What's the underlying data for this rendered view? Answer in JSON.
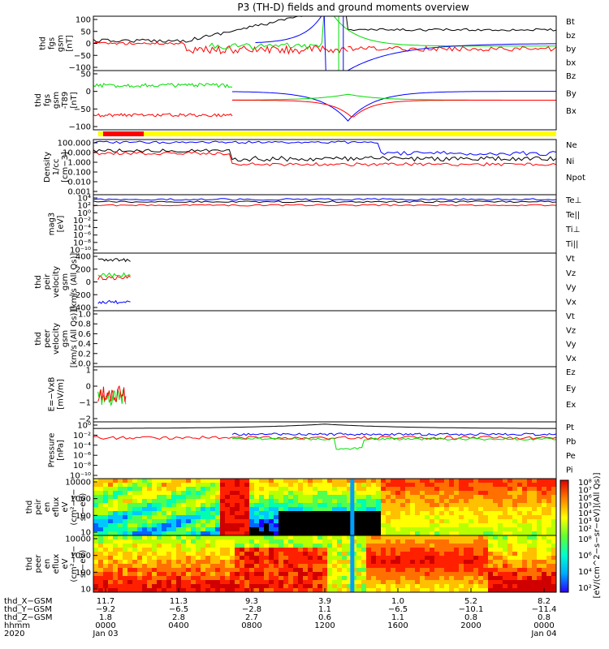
{
  "title": "P3 (TH-D) fields and ground moments overview",
  "colors": {
    "black": "#000000",
    "red": "#ff0000",
    "green": "#00dd00",
    "blue": "#0000ff",
    "yellow": "#ffff00"
  },
  "chart_data": {
    "type": "line",
    "panels": [
      {
        "id": "fgs-gsm",
        "ylabel": [
          "thd",
          "fgs",
          "gsm",
          "[nT]"
        ],
        "ticks": [
          "100",
          "50",
          "0",
          "−50",
          "−100"
        ],
        "ylim": [
          -100,
          100
        ],
        "legend": [
          {
            "name": "Bt",
            "color": "black"
          },
          {
            "name": "bz",
            "color": "red"
          },
          {
            "name": "by",
            "color": "green"
          },
          {
            "name": "bx",
            "color": "blue"
          }
        ]
      },
      {
        "id": "fgs-gsm-dc",
        "ylabel": [
          "thd",
          "fgs",
          "gsm",
          "-T89",
          "[nT]"
        ],
        "ticks": [
          "50",
          "0",
          "−50",
          "−100"
        ],
        "ylim": [
          -125,
          75
        ],
        "legend": [
          {
            "name": "Bz",
            "color": "red"
          },
          {
            "name": "By",
            "color": "green"
          },
          {
            "name": "Bx",
            "color": "blue"
          }
        ]
      },
      {
        "id": "density",
        "ylabel": [
          "Density",
          "1/cc",
          "[cm−3]"
        ],
        "ticks": [
          "100.000",
          "10.000",
          "1.000",
          "0.100",
          "0.010",
          "0.001"
        ],
        "scale": "log",
        "legend": [
          {
            "name": "Ne",
            "color": "red"
          },
          {
            "name": "Ni",
            "color": "black"
          },
          {
            "name": "Npot",
            "color": "blue"
          }
        ]
      },
      {
        "id": "temperature",
        "ylabel": [
          "mag3",
          "[eV]"
        ],
        "ticks": [
          "10⁴",
          "10²",
          "10⁰",
          "10⁻²",
          "10⁻⁴",
          "10⁻⁶",
          "10⁻⁸",
          "10⁻¹⁰"
        ],
        "scale": "log",
        "legend": [
          {
            "name": "Te⊥",
            "color": "red"
          },
          {
            "name": "Te||",
            "color": "black"
          },
          {
            "name": "Ti⊥",
            "color": "blue"
          },
          {
            "name": "Ti||",
            "color": "green"
          }
        ]
      },
      {
        "id": "peir-velocity",
        "ylabel": [
          "thd",
          "peir",
          "velocity",
          "gsm",
          "[km/s (All Qs)]"
        ],
        "ticks": [
          "400",
          "200",
          "0",
          "−200",
          "−400"
        ],
        "ylim": [
          -400,
          400
        ],
        "legend": [
          {
            "name": "Vt",
            "color": "black"
          },
          {
            "name": "Vz",
            "color": "red"
          },
          {
            "name": "Vy",
            "color": "green"
          },
          {
            "name": "Vx",
            "color": "blue"
          }
        ]
      },
      {
        "id": "peer-velocity",
        "ylabel": [
          "thd",
          "peer",
          "velocity",
          "gsm",
          "[km/s (All Qs)]"
        ],
        "ticks": [
          "1.0",
          "0.8",
          "0.6",
          "0.4",
          "0.2",
          "0.0"
        ],
        "ylim": [
          0,
          1
        ],
        "legend": [
          {
            "name": "Vt",
            "color": "black"
          },
          {
            "name": "Vz",
            "color": "red"
          },
          {
            "name": "Vy",
            "color": "green"
          },
          {
            "name": "Vx",
            "color": "blue"
          }
        ]
      },
      {
        "id": "efield",
        "ylabel": [
          "E=−VxB",
          "[mV/m]"
        ],
        "ticks": [
          "1",
          "0",
          "−1",
          "−2"
        ],
        "ylim": [
          -2,
          1.5
        ],
        "legend": [
          {
            "name": "Ez",
            "color": "red"
          },
          {
            "name": "Ey",
            "color": "green"
          },
          {
            "name": "Ex",
            "color": "blue"
          }
        ]
      },
      {
        "id": "pressure",
        "ylabel": [
          "Pressure",
          "[nPa]"
        ],
        "ticks": [
          "10⁰",
          "10⁻²",
          "10⁻⁴",
          "10⁻⁶",
          "10⁻⁸",
          "10⁻¹⁰"
        ],
        "scale": "log",
        "legend": [
          {
            "name": "Pt",
            "color": "black"
          },
          {
            "name": "Pb",
            "color": "red"
          },
          {
            "name": "Pe",
            "color": "green"
          },
          {
            "name": "Pi",
            "color": "blue"
          }
        ]
      },
      {
        "id": "peir-spectrogram",
        "type": "heatmap",
        "ylabel": [
          "thd",
          "peir",
          "en",
          "eflux",
          "eV",
          "(cm²−s−",
          "sr−eV)"
        ],
        "ticks": [
          "10000",
          "1000",
          "100",
          "10"
        ],
        "scale": "log"
      },
      {
        "id": "peer-spectrogram",
        "type": "heatmap",
        "ylabel": [
          "thd",
          "peer",
          "en",
          "eflux",
          "eV",
          "(cm²−s−",
          "sr−eV)"
        ],
        "ticks": [
          "10000",
          "1000",
          "100",
          "10"
        ],
        "scale": "log"
      }
    ],
    "colorbar": {
      "label": "[eV/(cm^2−s−sr−eV)](All Qs)]",
      "ticks": [
        "10⁸",
        "10⁷",
        "10⁶",
        "10⁵",
        "10⁴",
        "10³",
        "10²"
      ],
      "ticks_lower": [
        "10⁸",
        "10⁶",
        "10⁴",
        "10²"
      ]
    },
    "x_axis": {
      "rows": [
        {
          "label": "thd_X−GSM",
          "values": [
            "11.7",
            "11.3",
            "9.3",
            "3.9",
            "1.0",
            "5.2",
            "8.2"
          ]
        },
        {
          "label": "thd_Y−GSM",
          "values": [
            "−9.2",
            "−6.5",
            "−2.8",
            "1.1",
            "−6.5",
            "−10.1",
            "−11.4"
          ]
        },
        {
          "label": "thd_Z−GSM",
          "values": [
            "1.8",
            "2.8",
            "2.7",
            "0.6",
            "1.1",
            "0.8",
            "0.8"
          ]
        },
        {
          "label": "hhmm",
          "values": [
            "0000",
            "0400",
            "0800",
            "1200",
            "1600",
            "2000",
            "0000"
          ]
        }
      ],
      "year": "2020",
      "date_start": "Jan 03",
      "date_end": "Jan 04"
    }
  }
}
